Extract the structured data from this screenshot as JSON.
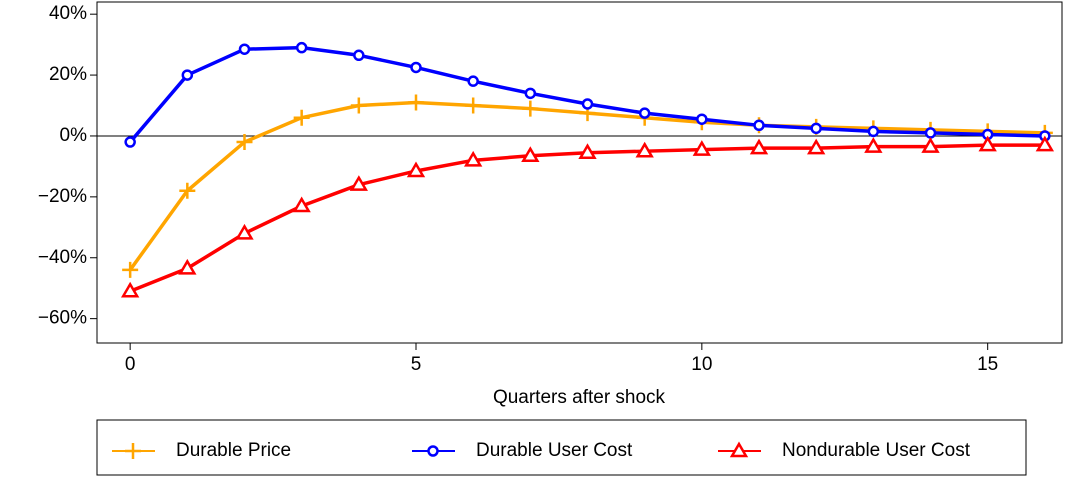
{
  "chart_data": {
    "type": "line",
    "x_label": "Quarters after shock",
    "x": [
      0,
      1,
      2,
      3,
      4,
      5,
      6,
      7,
      8,
      9,
      10,
      11,
      12,
      13,
      14,
      15,
      16
    ],
    "series": [
      {
        "name": "Durable Price",
        "color": "#ffa500",
        "marker": "plus",
        "values": [
          -44,
          -18,
          -2,
          6,
          10,
          11,
          10,
          9,
          7.5,
          6,
          4.5,
          3.5,
          3,
          2.5,
          2,
          1.5,
          1
        ]
      },
      {
        "name": "Durable User Cost",
        "color": "#0000ff",
        "marker": "circle",
        "values": [
          -2,
          20,
          28.5,
          29,
          26.5,
          22.5,
          18,
          14,
          10.5,
          7.5,
          5.5,
          3.5,
          2.5,
          1.5,
          1,
          0.5,
          0
        ]
      },
      {
        "name": "Nondurable User Cost",
        "color": "#ff0000",
        "marker": "triangle",
        "values": [
          -51,
          -43.5,
          -32,
          -23,
          -16,
          -11.5,
          -8,
          -6.5,
          -5.5,
          -5,
          -4.5,
          -4,
          -4,
          -3.5,
          -3.5,
          -3,
          -3
        ]
      }
    ],
    "xlim": [
      -0.58,
      16.3
    ],
    "ylim": [
      -68,
      44
    ],
    "xticks": [
      0,
      5,
      10,
      15
    ],
    "yticks": [
      {
        "value": -60,
        "label": "−60%"
      },
      {
        "value": -40,
        "label": "−40%"
      },
      {
        "value": -20,
        "label": "−20%"
      },
      {
        "value": 0,
        "label": "0%"
      },
      {
        "value": 20,
        "label": "20%"
      },
      {
        "value": 40,
        "label": "40%"
      }
    ],
    "hline": 0,
    "grid": false,
    "legend": "bottom"
  }
}
